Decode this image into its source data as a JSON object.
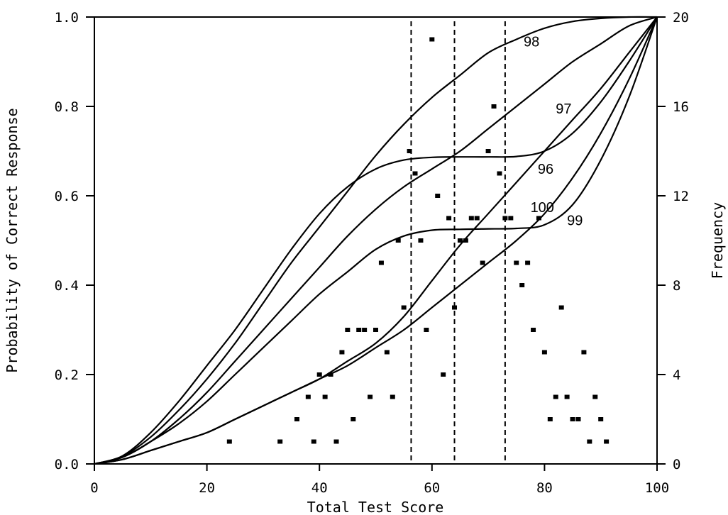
{
  "chart_data": {
    "type": "line",
    "xlabel": "Total Test Score",
    "ylabel": "Probability of Correct Response",
    "y2label": "Frequency",
    "xlim": [
      0,
      100
    ],
    "ylim": [
      0,
      1.0
    ],
    "y2lim": [
      0,
      20
    ],
    "x_ticks": [
      "0",
      "20",
      "40",
      "60",
      "80",
      "100"
    ],
    "y_ticks": [
      "0.0",
      "0.2",
      "0.4",
      "0.6",
      "0.8",
      "1.0"
    ],
    "y2_ticks": [
      "0",
      "4",
      "8",
      "12",
      "16",
      "20"
    ],
    "grid": false,
    "series": [
      {
        "name": "98",
        "x": [
          0,
          5,
          10,
          15,
          20,
          25,
          30,
          35,
          40,
          45,
          50,
          55,
          60,
          65,
          70,
          75,
          80,
          85,
          90,
          95,
          100
        ],
        "y": [
          0.0,
          0.017,
          0.06,
          0.12,
          0.19,
          0.27,
          0.36,
          0.45,
          0.53,
          0.61,
          0.69,
          0.76,
          0.82,
          0.87,
          0.92,
          0.95,
          0.975,
          0.99,
          0.997,
          1.0,
          1.0
        ]
      },
      {
        "name": "97",
        "x": [
          0,
          5,
          10,
          15,
          20,
          25,
          30,
          35,
          40,
          45,
          50,
          55,
          60,
          65,
          70,
          75,
          80,
          85,
          90,
          95,
          100
        ],
        "y": [
          0.0,
          0.015,
          0.05,
          0.1,
          0.16,
          0.23,
          0.3,
          0.37,
          0.44,
          0.51,
          0.57,
          0.62,
          0.66,
          0.7,
          0.75,
          0.8,
          0.85,
          0.9,
          0.94,
          0.98,
          1.0
        ]
      },
      {
        "name": "96",
        "x": [
          0,
          5,
          10,
          15,
          20,
          25,
          30,
          35,
          40,
          45,
          50,
          55,
          60,
          65,
          70,
          75,
          80,
          85,
          90,
          95,
          100
        ],
        "y": [
          0.0,
          0.018,
          0.07,
          0.14,
          0.22,
          0.3,
          0.39,
          0.48,
          0.56,
          0.62,
          0.66,
          0.68,
          0.686,
          0.687,
          0.687,
          0.688,
          0.7,
          0.74,
          0.81,
          0.9,
          1.0
        ]
      },
      {
        "name": "100",
        "x": [
          0,
          5,
          10,
          15,
          20,
          25,
          30,
          35,
          40,
          45,
          50,
          55,
          60,
          65,
          70,
          75,
          80,
          85,
          90,
          95,
          100
        ],
        "y": [
          0.0,
          0.01,
          0.03,
          0.05,
          0.07,
          0.1,
          0.13,
          0.16,
          0.19,
          0.23,
          0.27,
          0.33,
          0.41,
          0.49,
          0.56,
          0.63,
          0.7,
          0.77,
          0.84,
          0.92,
          1.0
        ]
      },
      {
        "name": "99",
        "x": [
          0,
          5,
          10,
          15,
          20,
          25,
          30,
          35,
          40,
          45,
          50,
          55,
          60,
          65,
          70,
          75,
          80,
          85,
          90,
          95,
          100
        ],
        "y": [
          0.0,
          0.01,
          0.03,
          0.05,
          0.07,
          0.1,
          0.13,
          0.16,
          0.19,
          0.22,
          0.26,
          0.3,
          0.35,
          0.4,
          0.45,
          0.5,
          0.56,
          0.64,
          0.74,
          0.86,
          1.0
        ]
      },
      {
        "name": "",
        "x": [
          0,
          5,
          10,
          15,
          20,
          25,
          30,
          35,
          40,
          45,
          50,
          55,
          60,
          65,
          70,
          75,
          80,
          85,
          90,
          95,
          100
        ],
        "y": [
          0.0,
          0.015,
          0.05,
          0.09,
          0.14,
          0.2,
          0.26,
          0.32,
          0.38,
          0.43,
          0.48,
          0.51,
          0.523,
          0.525,
          0.526,
          0.527,
          0.535,
          0.58,
          0.68,
          0.82,
          1.0
        ]
      }
    ],
    "curve_labels": [
      {
        "text": "98",
        "x": 76.3,
        "y": 0.945
      },
      {
        "text": "97",
        "x": 82.0,
        "y": 0.795
      },
      {
        "text": "96",
        "x": 78.8,
        "y": 0.66
      },
      {
        "text": "100",
        "x": 77.5,
        "y": 0.575
      },
      {
        "text": "99",
        "x": 84.0,
        "y": 0.545
      }
    ],
    "vertical_lines_x": [
      56.3,
      64.0,
      73.0
    ],
    "frequency_points": [
      {
        "x": 24,
        "y": 1
      },
      {
        "x": 33,
        "y": 1
      },
      {
        "x": 36,
        "y": 2
      },
      {
        "x": 38,
        "y": 3
      },
      {
        "x": 39,
        "y": 1
      },
      {
        "x": 40,
        "y": 4
      },
      {
        "x": 41,
        "y": 3
      },
      {
        "x": 42,
        "y": 4
      },
      {
        "x": 43,
        "y": 1
      },
      {
        "x": 44,
        "y": 5
      },
      {
        "x": 45,
        "y": 6
      },
      {
        "x": 46,
        "y": 2
      },
      {
        "x": 47,
        "y": 6
      },
      {
        "x": 48,
        "y": 6
      },
      {
        "x": 49,
        "y": 3
      },
      {
        "x": 50,
        "y": 6
      },
      {
        "x": 51,
        "y": 9
      },
      {
        "x": 52,
        "y": 5
      },
      {
        "x": 53,
        "y": 3
      },
      {
        "x": 54,
        "y": 10
      },
      {
        "x": 55,
        "y": 7
      },
      {
        "x": 56,
        "y": 14
      },
      {
        "x": 57,
        "y": 13
      },
      {
        "x": 58,
        "y": 10
      },
      {
        "x": 59,
        "y": 6
      },
      {
        "x": 60,
        "y": 19
      },
      {
        "x": 61,
        "y": 12
      },
      {
        "x": 62,
        "y": 4
      },
      {
        "x": 63,
        "y": 11
      },
      {
        "x": 64,
        "y": 7
      },
      {
        "x": 65,
        "y": 10
      },
      {
        "x": 66,
        "y": 10
      },
      {
        "x": 67,
        "y": 11
      },
      {
        "x": 68,
        "y": 11
      },
      {
        "x": 69,
        "y": 9
      },
      {
        "x": 70,
        "y": 14
      },
      {
        "x": 71,
        "y": 16
      },
      {
        "x": 72,
        "y": 13
      },
      {
        "x": 73,
        "y": 11
      },
      {
        "x": 74,
        "y": 11
      },
      {
        "x": 75,
        "y": 9
      },
      {
        "x": 76,
        "y": 8
      },
      {
        "x": 77,
        "y": 9
      },
      {
        "x": 78,
        "y": 6
      },
      {
        "x": 79,
        "y": 11
      },
      {
        "x": 80,
        "y": 5
      },
      {
        "x": 81,
        "y": 2
      },
      {
        "x": 82,
        "y": 3
      },
      {
        "x": 83,
        "y": 7
      },
      {
        "x": 84,
        "y": 3
      },
      {
        "x": 85,
        "y": 2
      },
      {
        "x": 86,
        "y": 2
      },
      {
        "x": 87,
        "y": 5
      },
      {
        "x": 88,
        "y": 1
      },
      {
        "x": 89,
        "y": 3
      },
      {
        "x": 90,
        "y": 2
      },
      {
        "x": 91,
        "y": 1
      }
    ]
  }
}
